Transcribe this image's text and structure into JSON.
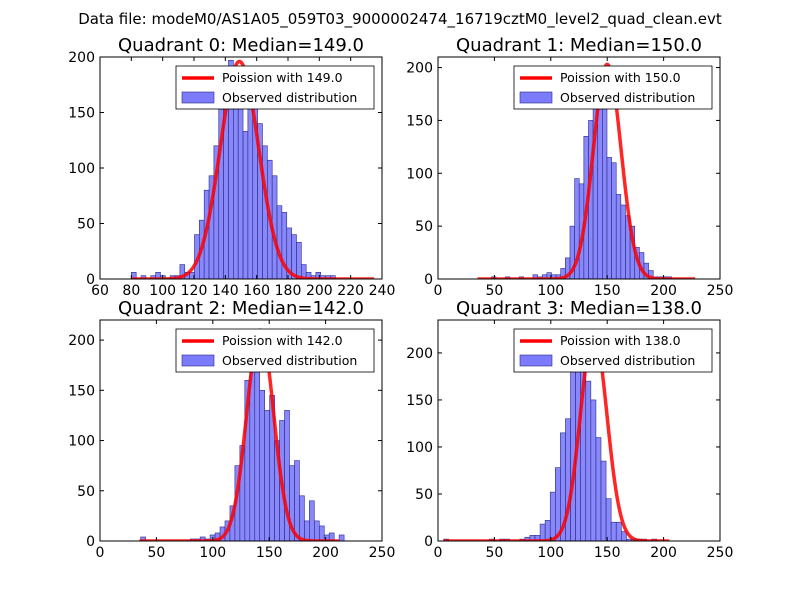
{
  "figure_title": "Data file: modeM0/AS1A05_059T03_9000002474_16719cztM0_level2_quad_clean.evt",
  "colors": {
    "bar_fill": "#7b7bfb",
    "bar_edge": "#2a2a8a",
    "curve": "#ff0000",
    "axes": "#000000"
  },
  "chart_data": [
    {
      "type": "bar",
      "title": "Quadrant 0: Median=149.0",
      "legend_position": "top-right",
      "xlim": [
        60,
        240
      ],
      "ylim": [
        0,
        200
      ],
      "xticks": [
        60,
        80,
        100,
        120,
        140,
        160,
        180,
        200,
        220,
        240
      ],
      "yticks": [
        0,
        50,
        100,
        150,
        200
      ],
      "bin_start": 80,
      "bin_width": 3.1,
      "values": [
        6,
        0,
        3,
        0,
        3,
        6,
        3,
        0,
        3,
        3,
        13,
        6,
        6,
        40,
        53,
        80,
        93,
        120,
        153,
        173,
        197,
        180,
        160,
        133,
        180,
        173,
        140,
        120,
        107,
        93,
        66,
        60,
        46,
        40,
        33,
        13,
        6,
        3,
        6,
        3,
        3,
        3,
        0,
        0,
        0,
        0,
        0,
        0
      ],
      "poisson_mean": 149.0,
      "poisson_peak": 196,
      "curve_range": [
        80,
        235
      ],
      "series": [
        {
          "name": "Poission with 149.0",
          "kind": "line"
        },
        {
          "name": "Observed distribution",
          "kind": "bar"
        }
      ]
    },
    {
      "type": "bar",
      "title": "Quadrant 1: Median=150.0",
      "legend_position": "top-right",
      "xlim": [
        0,
        250
      ],
      "ylim": [
        0,
        210
      ],
      "xticks": [
        0,
        50,
        100,
        150,
        200,
        250
      ],
      "yticks": [
        0,
        50,
        100,
        150,
        200
      ],
      "bin_start": 35,
      "bin_width": 4.1,
      "values": [
        0,
        0,
        0,
        2,
        0,
        0,
        2,
        0,
        0,
        2,
        0,
        0,
        4,
        2,
        4,
        6,
        4,
        4,
        10,
        20,
        50,
        95,
        90,
        135,
        150,
        190,
        200,
        170,
        115,
        110,
        80,
        70,
        60,
        50,
        30,
        25,
        15,
        8,
        2,
        2,
        2,
        2,
        0
      ],
      "poisson_mean": 150.0,
      "poisson_peak": 203,
      "curve_range": [
        35,
        228
      ],
      "series": [
        {
          "name": "Poission with 150.0",
          "kind": "line"
        },
        {
          "name": "Observed distribution",
          "kind": "bar"
        }
      ]
    },
    {
      "type": "bar",
      "title": "Quadrant 2: Median=142.0",
      "legend_position": "top-right",
      "xlim": [
        0,
        250
      ],
      "ylim": [
        0,
        220
      ],
      "xticks": [
        0,
        50,
        100,
        150,
        200,
        250
      ],
      "yticks": [
        0,
        50,
        100,
        150,
        200
      ],
      "bin_start": 36,
      "bin_width": 4.4,
      "values": [
        4,
        0,
        0,
        0,
        0,
        0,
        0,
        0,
        0,
        0,
        2,
        2,
        4,
        2,
        6,
        8,
        14,
        20,
        35,
        75,
        95,
        160,
        210,
        200,
        150,
        130,
        145,
        100,
        120,
        130,
        75,
        80,
        45,
        20,
        40,
        20,
        15,
        6,
        8,
        0,
        6
      ],
      "poisson_mean": 142.0,
      "poisson_peak": 210,
      "curve_range": [
        35,
        212
      ],
      "series": [
        {
          "name": "Poission with 142.0",
          "kind": "line"
        },
        {
          "name": "Observed distribution",
          "kind": "bar"
        }
      ]
    },
    {
      "type": "bar",
      "title": "Quadrant 3: Median=138.0",
      "legend_position": "top-right",
      "xlim": [
        0,
        250
      ],
      "ylim": [
        0,
        235
      ],
      "xticks": [
        0,
        50,
        100,
        150,
        200,
        250
      ],
      "yticks": [
        0,
        50,
        100,
        150,
        200
      ],
      "bin_start": 5,
      "bin_width": 4.5,
      "values": [
        2,
        0,
        0,
        0,
        0,
        0,
        0,
        0,
        0,
        2,
        0,
        2,
        2,
        0,
        0,
        2,
        4,
        6,
        6,
        18,
        22,
        52,
        78,
        115,
        130,
        180,
        205,
        200,
        170,
        150,
        110,
        85,
        45,
        20,
        20,
        10,
        2,
        2,
        2,
        2,
        0,
        2,
        0
      ],
      "poisson_mean": 138.0,
      "poisson_peak": 222,
      "curve_range": [
        5,
        205
      ],
      "series": [
        {
          "name": "Poission with 138.0",
          "kind": "line"
        },
        {
          "name": "Observed distribution",
          "kind": "bar"
        }
      ]
    }
  ]
}
